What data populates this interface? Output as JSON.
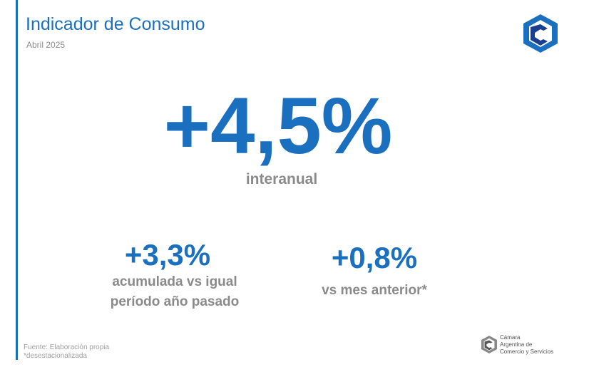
{
  "header": {
    "title": "Indicador de Consumo",
    "subtitle": "Abril 2025"
  },
  "main": {
    "value": "+4,5%",
    "label": "interanual"
  },
  "secondary": [
    {
      "value": "+3,3%",
      "label_lines": [
        "acumulada vs igual",
        "período año pasado"
      ]
    },
    {
      "value": "+0,8%",
      "label_lines": [
        "vs mes anterior*"
      ]
    }
  ],
  "footer": {
    "notes": [
      "Fuente: Elaboración propia",
      "*desestacionalizada"
    ],
    "logo_lines": [
      "Cámara",
      "Argentina de",
      "Comercio y Servicios"
    ]
  }
}
